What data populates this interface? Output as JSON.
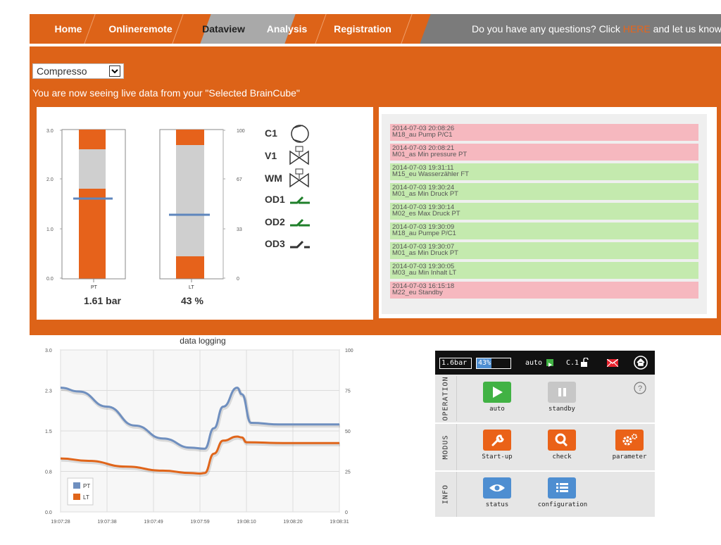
{
  "nav": {
    "items": [
      "Home",
      "Onlineremote",
      "Dataview",
      "Analysis",
      "Registration"
    ],
    "active": "Dataview",
    "question_text": "Do you have any questions? Click",
    "question_link": "HERE",
    "question_tail": "and let us know"
  },
  "selector": {
    "value": "Compresso"
  },
  "live_text": "You are now seeing live data from your \"Selected BrainCube\"",
  "tanks": {
    "pt": {
      "label": "PT",
      "reading": "1.61 bar",
      "ticks": [
        "3.0",
        "2.0",
        "1.0",
        "0.0"
      ],
      "value": 1.61,
      "max": 3.0
    },
    "lt": {
      "label": "LT",
      "reading": "43 %",
      "ticks": [
        "100",
        "67",
        "33",
        "0"
      ],
      "value": 43,
      "max": 100
    }
  },
  "components": [
    {
      "label": "C1",
      "icon": "compressor-icon"
    },
    {
      "label": "V1",
      "icon": "valve-icon"
    },
    {
      "label": "WM",
      "icon": "valve-icon"
    },
    {
      "label": "OD1",
      "icon": "switch-on-icon"
    },
    {
      "label": "OD2",
      "icon": "switch-on-icon"
    },
    {
      "label": "OD3",
      "icon": "switch-off-icon"
    }
  ],
  "alarms": [
    {
      "time": "2014-07-03 20:08:26",
      "message": "M18_au Pump P/C1",
      "status": "red"
    },
    {
      "time": "2014-07-03 20:08:21",
      "message": "M01_as Min pressure PT",
      "status": "red"
    },
    {
      "time": "2014-07-03 19:31:11",
      "message": "M15_eu Wasserzähler FT",
      "status": "green"
    },
    {
      "time": "2014-07-03 19:30:24",
      "message": "M01_as Min Druck PT",
      "status": "green"
    },
    {
      "time": "2014-07-03 19:30:14",
      "message": "M02_es Max Druck PT",
      "status": "green"
    },
    {
      "time": "2014-07-03 19:30:09",
      "message": "M18_au Pumpe P/C1",
      "status": "green"
    },
    {
      "time": "2014-07-03 19:30:07",
      "message": "M01_as Min Druck PT",
      "status": "green"
    },
    {
      "time": "2014-07-03 19:30:05",
      "message": "M03_au Min Inhalt LT",
      "status": "green"
    },
    {
      "time": "2014-07-03 16:15:18",
      "message": "M22_eu Standby",
      "status": "red"
    }
  ],
  "chart_data": {
    "type": "line",
    "title": "data logging",
    "x": [
      "19:07:28",
      "19:07:38",
      "19:07:49",
      "19:07:59",
      "19:08:10",
      "19:08:20",
      "19:08:31"
    ],
    "y_left_ticks": [
      "3.0",
      "2.3",
      "1.5",
      "0.8",
      "0.0"
    ],
    "y_right_ticks": [
      "100",
      "75",
      "50",
      "25",
      "0"
    ],
    "y_left_range": [
      0,
      3.0
    ],
    "y_right_range": [
      0,
      100
    ],
    "legend_position": "bottom-left",
    "series": [
      {
        "name": "PT",
        "color": "#6f8fbf",
        "axis": "left",
        "points": [
          [
            0,
            2.3
          ],
          [
            4,
            2.23
          ],
          [
            10,
            1.95
          ],
          [
            16,
            1.6
          ],
          [
            22,
            1.36
          ],
          [
            28,
            1.19
          ],
          [
            31,
            1.17
          ],
          [
            33,
            1.55
          ],
          [
            35,
            1.95
          ],
          [
            38,
            2.3
          ],
          [
            39,
            2.18
          ],
          [
            41,
            1.65
          ],
          [
            47,
            1.62
          ],
          [
            60,
            1.62
          ]
        ]
      },
      {
        "name": "LT",
        "color": "#e0651a",
        "axis": "right",
        "points": [
          [
            0,
            33
          ],
          [
            6,
            31.5
          ],
          [
            14,
            28
          ],
          [
            22,
            25.5
          ],
          [
            28,
            24
          ],
          [
            30,
            23.7
          ],
          [
            31,
            24
          ],
          [
            33,
            36
          ],
          [
            35,
            44
          ],
          [
            38,
            46.5
          ],
          [
            39,
            46
          ],
          [
            40,
            43
          ],
          [
            48,
            42.5
          ],
          [
            60,
            42.5
          ]
        ]
      }
    ]
  },
  "control": {
    "pressure_display": "1.6bar",
    "level_display": "43%",
    "level_value": 43,
    "mode_text": "auto",
    "c1_text": "C.1",
    "sections": [
      {
        "label": "OPERATION",
        "buttons": [
          {
            "label": "auto",
            "icon": "play-icon",
            "color": "#41b244"
          },
          {
            "label": "standby",
            "icon": "pause-icon",
            "color": "#c7c7c7"
          }
        ]
      },
      {
        "label": "MODUS",
        "buttons": [
          {
            "label": "Start-up",
            "icon": "wrench-icon",
            "color": "#ea6218"
          },
          {
            "label": "check",
            "icon": "search-icon",
            "color": "#ea6218"
          },
          {
            "label": "parameter",
            "icon": "gear-icon",
            "color": "#ea6218"
          }
        ]
      },
      {
        "label": "INFO",
        "buttons": [
          {
            "label": "status",
            "icon": "eye-icon",
            "color": "#4e8ed1"
          },
          {
            "label": "configuration",
            "icon": "list-icon",
            "color": "#4e8ed1"
          }
        ]
      }
    ]
  }
}
